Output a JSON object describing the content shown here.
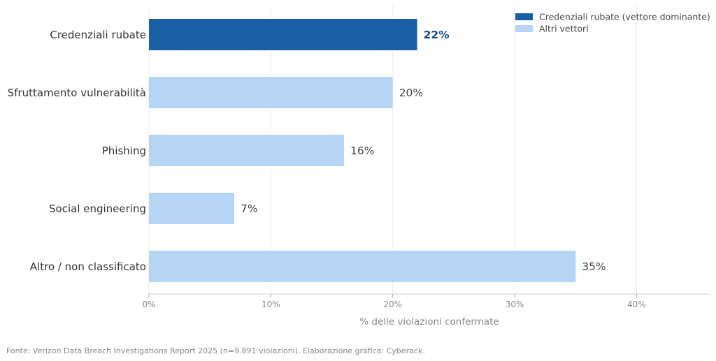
{
  "chart_data": {
    "type": "bar",
    "orientation": "horizontal",
    "categories": [
      "Credenziali rubate",
      "Sfruttamento vulnerabilità",
      "Phishing",
      "Social engineering",
      "Altro / non classificato"
    ],
    "values": [
      22,
      20,
      16,
      7,
      35
    ],
    "value_labels": [
      "22%",
      "20%",
      "16%",
      "7%",
      "35%"
    ],
    "highlight_index": 0,
    "xlabel": "% delle violazioni confermate",
    "ylabel": "",
    "xlim": [
      0,
      46
    ],
    "x_ticks": [
      0,
      10,
      20,
      30,
      40
    ],
    "x_tick_labels": [
      "0%",
      "10%",
      "20%",
      "30%",
      "40%"
    ],
    "grid": "vertical",
    "legend_position": "top-right",
    "legend": [
      {
        "label": "Credenziali rubate (vettore dominante)",
        "color": "#1a5fa5"
      },
      {
        "label": "Altri vettori",
        "color": "#b6d4f3"
      }
    ],
    "colors": {
      "highlight": "#1a5fa5",
      "other": "#b6d4f3",
      "highlight_label": "#1a4d84"
    }
  },
  "source_note": "Fonte: Verizon Data Breach Investigations Report 2025 (n=9.891 violazioni). Elaborazione grafica: Cyberack."
}
